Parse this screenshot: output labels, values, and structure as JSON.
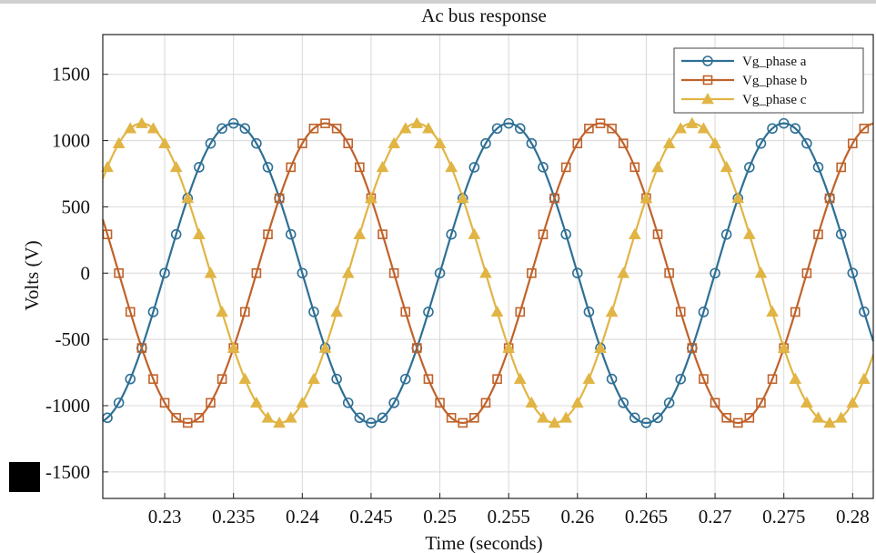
{
  "chart_data": {
    "type": "line",
    "title": "Ac bus response",
    "xlabel": "Time (seconds)",
    "ylabel": "Volts (V)",
    "xlim": [
      0.2255,
      0.2815
    ],
    "ylim": [
      -1700,
      1800
    ],
    "x_ticks": [
      0.23,
      0.235,
      0.24,
      0.245,
      0.25,
      0.255,
      0.26,
      0.265,
      0.27,
      0.275,
      0.28
    ],
    "x_tick_labels": [
      "0.23",
      "0.235",
      "0.24",
      "0.245",
      "0.25",
      "0.255",
      "0.26",
      "0.265",
      "0.27",
      "0.275",
      "0.28"
    ],
    "y_ticks": [
      -1500,
      -1000,
      -500,
      0,
      500,
      1000,
      1500
    ],
    "y_tick_labels": [
      "-1500",
      "-1000",
      "-500",
      "0",
      "500",
      "1000",
      "1500"
    ],
    "grid": true,
    "legend_position": "top-right",
    "sample_interval": 0.0008333,
    "series": [
      {
        "name": "Vg_phase a",
        "color": "#2e6f95",
        "marker": "circle",
        "amplitude": 1130,
        "frequency_hz": 50,
        "phase_deg": 0,
        "zero_crossing_s": 0.23
      },
      {
        "name": "Vg_phase b",
        "color": "#c0622a",
        "marker": "square",
        "amplitude": 1130,
        "frequency_hz": 50,
        "phase_deg": -120,
        "zero_crossing_s": 0.23
      },
      {
        "name": "Vg_phase c",
        "color": "#e1b545",
        "marker": "triangle",
        "amplitude": 1130,
        "frequency_hz": 50,
        "phase_deg": 120,
        "zero_crossing_s": 0.23
      }
    ]
  }
}
